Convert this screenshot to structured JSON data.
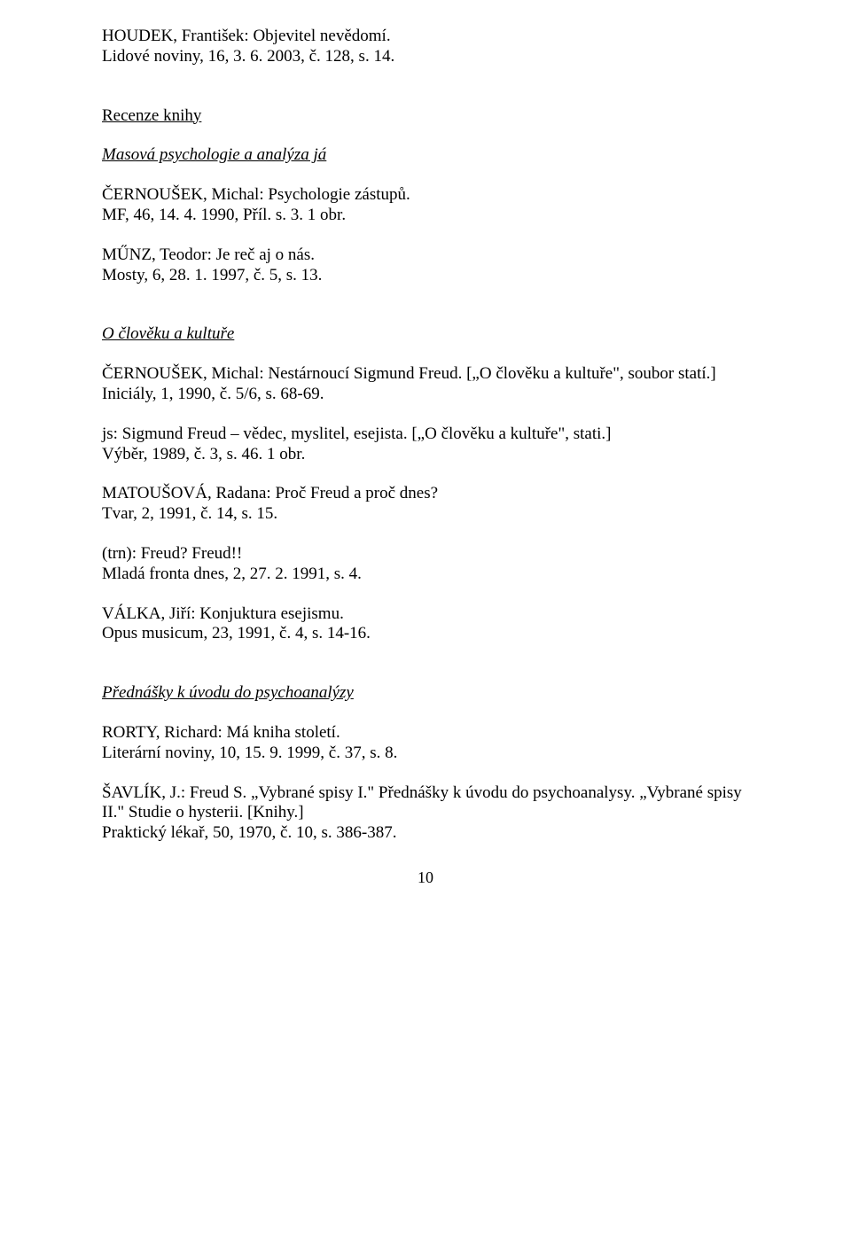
{
  "entries": {
    "e1a": "HOUDEK, František: Objevitel nevědomí.",
    "e1b": "Lidové noviny, 16, 3. 6. 2003, č. 128, s. 14.",
    "h1": "Recenze knihy",
    "h2": "Masová psychologie a analýza já",
    "e2a": "ČERNOUŠEK, Michal: Psychologie zástupů.",
    "e2b": "MF, 46, 14. 4. 1990, Příl. s. 3. 1 obr.",
    "e3a": "MŰNZ, Teodor: Je reč aj o nás.",
    "e3b": "Mosty, 6, 28. 1. 1997, č. 5, s. 13.",
    "h3": "O člověku a kultuře",
    "e4a": "ČERNOUŠEK, Michal: Nestárnoucí Sigmund Freud. [„O člověku a kultuře\", soubor statí.]",
    "e4b": "Iniciály, 1, 1990, č. 5/6, s. 68-69.",
    "e5a": "js: Sigmund Freud – vědec, myslitel, esejista. [„O člověku a kultuře\", stati.]",
    "e5b": "Výběr, 1989, č. 3, s. 46. 1 obr.",
    "e6a": "MATOUŠOVÁ, Radana: Proč Freud a proč dnes?",
    "e6b": "Tvar, 2, 1991, č. 14, s. 15.",
    "e7a": "(trn): Freud? Freud!!",
    "e7b": "Mladá fronta dnes, 2, 27. 2. 1991, s. 4.",
    "e8a": "VÁLKA, Jiří: Konjuktura esejismu.",
    "e8b": "Opus musicum, 23, 1991, č. 4, s. 14-16.",
    "h4": "Přednášky k úvodu do psychoanalýzy",
    "e9a": "RORTY, Richard: Má kniha století.",
    "e9b": "Literární noviny, 10, 15. 9. 1999, č. 37, s. 8.",
    "e10a": "ŠAVLÍK, J.: Freud S. „Vybrané spisy I.\" Přednášky k úvodu do psychoanalysy. „Vybrané spisy II.\" Studie o hysterii. [Knihy.]",
    "e10b": "Praktický lékař, 50, 1970, č. 10, s. 386-387.",
    "pagenum": "10"
  }
}
